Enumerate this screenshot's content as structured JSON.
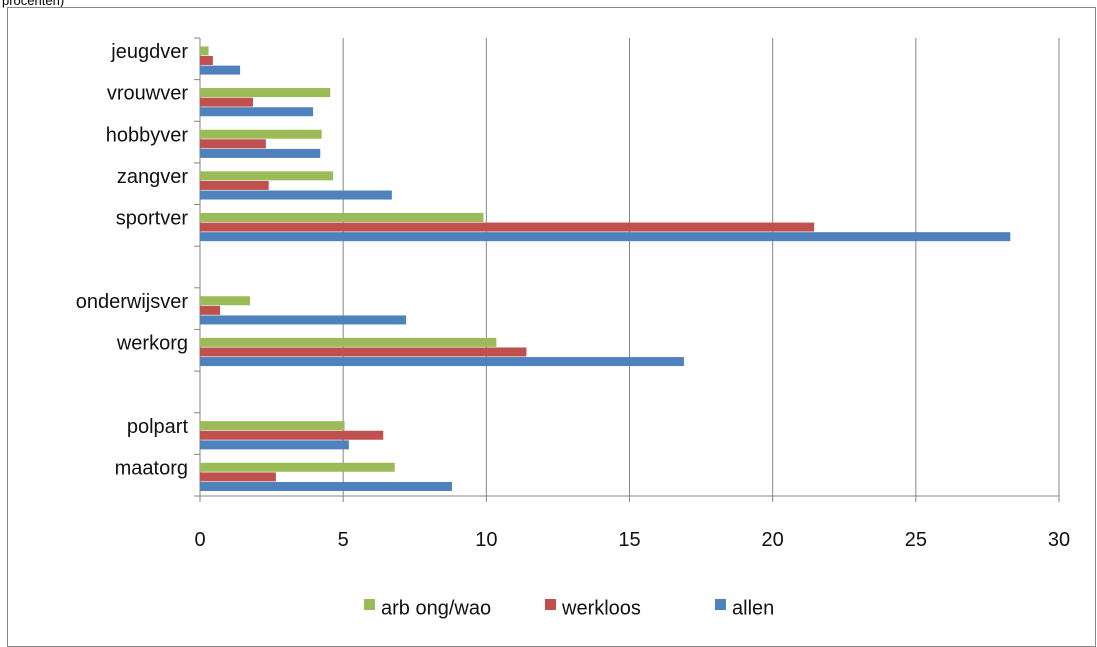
{
  "caption": "procenten)",
  "colors": {
    "arb": "#9bbb59",
    "werkloos": "#c0504d",
    "allen": "#4f81bd",
    "grid": "#868686",
    "axis": "#868686"
  },
  "chart_data": {
    "type": "bar",
    "orientation": "horizontal",
    "title": "",
    "xlabel": "",
    "ylabel": "",
    "xlim": [
      0,
      30
    ],
    "xticks": [
      0,
      5,
      10,
      15,
      20,
      25,
      30
    ],
    "grid": true,
    "legend_position": "bottom",
    "slots": [
      "maatorg",
      "polpart",
      "",
      "werkorg",
      "onderwijsver",
      "",
      "sportver",
      "zangver",
      "hobbyver",
      "vrouwver",
      "jeugdver"
    ],
    "categories": [
      "maatorg",
      "polpart",
      "werkorg",
      "onderwijsver",
      "sportver",
      "zangver",
      "hobbyver",
      "vrouwver",
      "jeugdver"
    ],
    "series": [
      {
        "name": "arb ong/wao",
        "color_key": "arb",
        "values": [
          6.8,
          5.05,
          10.35,
          1.75,
          9.9,
          4.65,
          4.25,
          4.55,
          0.3
        ]
      },
      {
        "name": "werkloos",
        "color_key": "werkloos",
        "values": [
          2.65,
          6.4,
          11.4,
          0.7,
          21.45,
          2.4,
          2.3,
          1.85,
          0.45
        ]
      },
      {
        "name": "allen",
        "color_key": "allen",
        "values": [
          8.8,
          5.2,
          16.9,
          7.2,
          28.3,
          6.7,
          4.2,
          3.95,
          1.4
        ]
      }
    ],
    "legend_order": [
      "arb ong/wao",
      "werkloos",
      "allen"
    ]
  }
}
